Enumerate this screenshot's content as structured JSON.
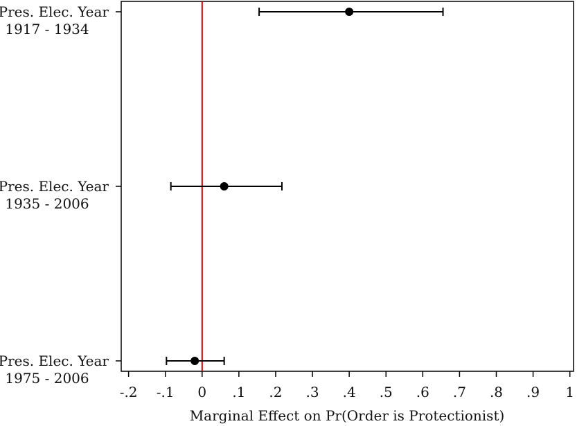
{
  "chart_data": {
    "type": "scatter",
    "subtype": "coefficient-plot-with-error-bars",
    "orientation": "horizontal",
    "title": "",
    "xlabel": "Marginal Effect on Pr(Order is Protectionist)",
    "ylabel": "",
    "xlim": [
      -0.22,
      1.01
    ],
    "xticks": [
      -0.2,
      -0.1,
      0,
      0.1,
      0.2,
      0.3,
      0.4,
      0.5,
      0.6,
      0.7,
      0.8,
      0.9,
      1
    ],
    "xtick_labels": [
      "-.2",
      "-.1",
      "0",
      ".1",
      ".2",
      ".3",
      ".4",
      ".5",
      ".6",
      ".7",
      ".8",
      ".9",
      "1"
    ],
    "reference_line": {
      "x": 0,
      "color": "#cc0000"
    },
    "grid": false,
    "legend": "none",
    "categories": [
      {
        "line1": "Pres. Elec. Year",
        "line2": "1917 - 1934"
      },
      {
        "line1": "Pres. Elec. Year",
        "line2": "1935 - 2006"
      },
      {
        "line1": "Pres. Elec. Year",
        "line2": "1975 - 2006"
      }
    ],
    "estimates": [
      0.4,
      0.06,
      -0.02
    ],
    "lower": [
      0.155,
      -0.085,
      -0.097
    ],
    "upper": [
      0.655,
      0.217,
      0.06
    ],
    "colors": {
      "marker": "#000000",
      "axis": "#000000"
    }
  }
}
